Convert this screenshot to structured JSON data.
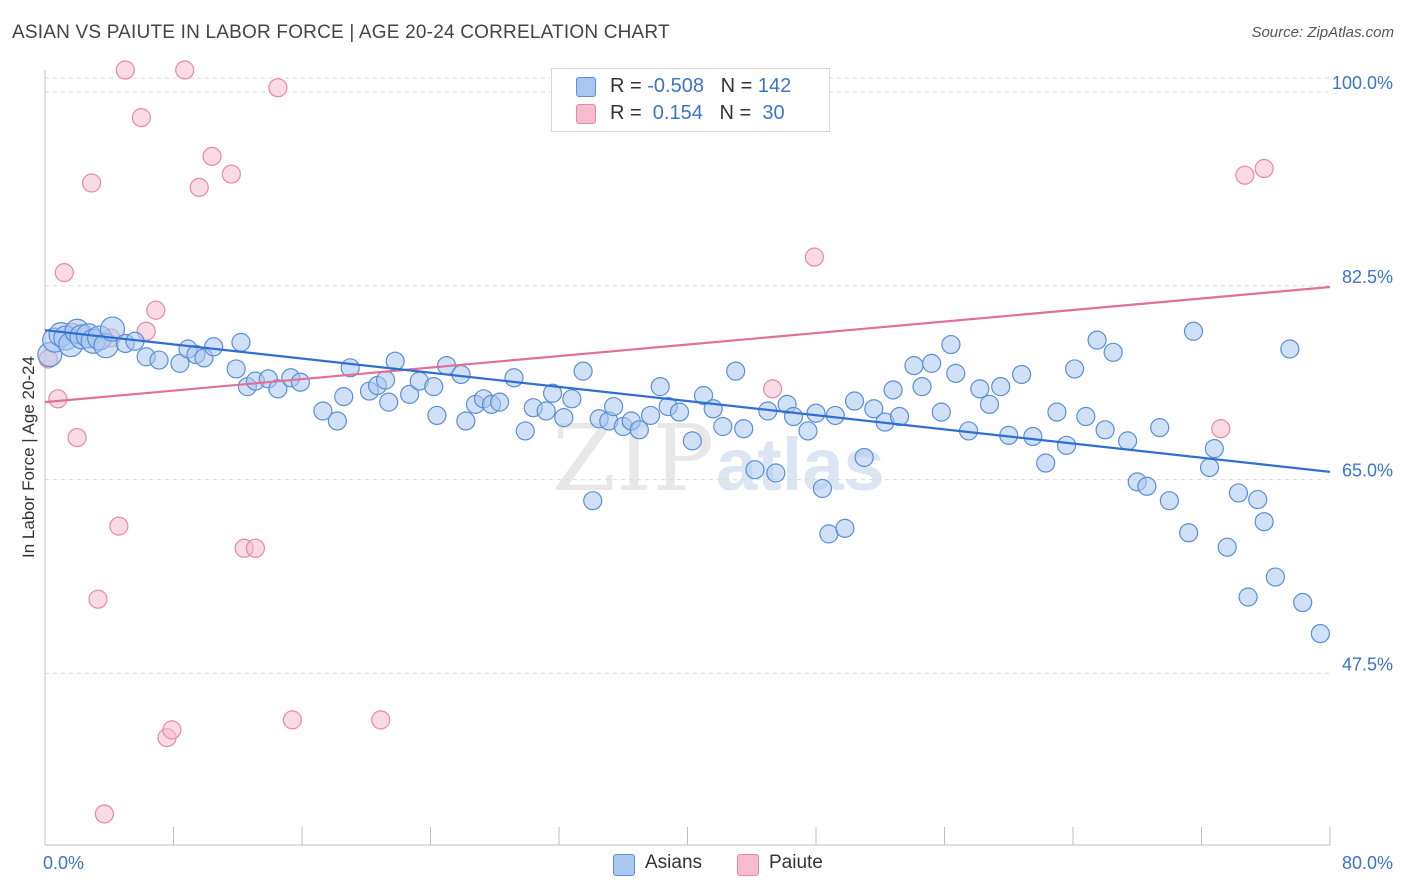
{
  "title": "ASIAN VS PAIUTE IN LABOR FORCE | AGE 20-24 CORRELATION CHART",
  "source": "Source: ZipAtlas.com",
  "legend_top": {
    "rows": [
      {
        "r_label": "R = ",
        "r_value": "-0.508",
        "n_label": "N = ",
        "n_value": "142"
      },
      {
        "r_label": "R = ",
        "r_value": " 0.154",
        "n_label": "N = ",
        "n_value": " 30"
      }
    ]
  },
  "legend_bottom": {
    "asians": "Asians",
    "paiute": "Paiute"
  },
  "colors": {
    "asian_fill": "#a9c6ef",
    "asian_stroke": "#5b8fd6",
    "asian_line": "#2f6fd1",
    "paiute_fill": "#f6bccd",
    "paiute_stroke": "#e889a6",
    "paiute_line": "#e0709a",
    "tick_text": "#3b74c9",
    "grid": "#d9d9d9"
  },
  "chart_data": {
    "type": "scatter",
    "title": "ASIAN VS PAIUTE IN LABOR FORCE | AGE 20-24 CORRELATION CHART",
    "xlabel": "",
    "ylabel": "In Labor Force | Age 20-24",
    "xlim": [
      0,
      80
    ],
    "ylim": [
      32,
      102
    ],
    "x_tick_labels": [
      "0.0%",
      "80.0%"
    ],
    "y_ticks": [
      47.5,
      65.0,
      82.5,
      100.0
    ],
    "y_tick_labels": [
      "47.5%",
      "65.0%",
      "82.5%",
      "100.0%"
    ],
    "series": [
      {
        "name": "Asians",
        "R": -0.508,
        "N": 142,
        "trend": {
          "x": [
            0,
            80
          ],
          "y": [
            78.5,
            65.7
          ]
        },
        "points": [
          [
            0.3,
            76.3
          ],
          [
            0.6,
            77.6
          ],
          [
            1.0,
            78.1
          ],
          [
            1.3,
            77.8
          ],
          [
            1.6,
            77.2
          ],
          [
            2.0,
            78.4
          ],
          [
            2.3,
            77.9
          ],
          [
            2.7,
            78.0
          ],
          [
            3.0,
            77.5
          ],
          [
            3.4,
            77.8
          ],
          [
            3.8,
            77.1
          ],
          [
            4.2,
            78.6
          ],
          [
            5.0,
            77.3
          ],
          [
            5.6,
            77.5
          ],
          [
            6.3,
            76.1
          ],
          [
            7.1,
            75.8
          ],
          [
            8.4,
            75.5
          ],
          [
            8.9,
            76.8
          ],
          [
            9.4,
            76.3
          ],
          [
            9.9,
            76.0
          ],
          [
            10.5,
            77.0
          ],
          [
            11.9,
            75.0
          ],
          [
            12.2,
            77.4
          ],
          [
            12.6,
            73.4
          ],
          [
            13.1,
            73.9
          ],
          [
            13.9,
            74.1
          ],
          [
            14.5,
            73.2
          ],
          [
            15.3,
            74.2
          ],
          [
            15.9,
            73.8
          ],
          [
            17.3,
            71.2
          ],
          [
            18.2,
            70.3
          ],
          [
            18.6,
            72.5
          ],
          [
            19.0,
            75.1
          ],
          [
            20.2,
            73.0
          ],
          [
            20.7,
            73.5
          ],
          [
            21.2,
            74.0
          ],
          [
            21.4,
            72.0
          ],
          [
            21.8,
            75.7
          ],
          [
            22.7,
            72.7
          ],
          [
            23.3,
            73.9
          ],
          [
            24.2,
            73.4
          ],
          [
            24.4,
            70.8
          ],
          [
            25.0,
            75.3
          ],
          [
            25.9,
            74.5
          ],
          [
            26.2,
            70.3
          ],
          [
            26.8,
            71.8
          ],
          [
            27.3,
            72.3
          ],
          [
            27.8,
            71.8
          ],
          [
            28.3,
            72.0
          ],
          [
            29.2,
            74.2
          ],
          [
            29.9,
            69.4
          ],
          [
            30.4,
            71.5
          ],
          [
            31.2,
            71.2
          ],
          [
            31.6,
            72.8
          ],
          [
            32.3,
            70.6
          ],
          [
            32.8,
            72.3
          ],
          [
            33.5,
            74.8
          ],
          [
            34.1,
            63.1
          ],
          [
            34.5,
            70.5
          ],
          [
            35.1,
            70.3
          ],
          [
            35.4,
            71.6
          ],
          [
            36.0,
            69.8
          ],
          [
            36.5,
            70.3
          ],
          [
            37.0,
            69.5
          ],
          [
            37.7,
            70.8
          ],
          [
            38.3,
            73.4
          ],
          [
            38.8,
            71.6
          ],
          [
            39.5,
            71.1
          ],
          [
            40.3,
            68.5
          ],
          [
            41.0,
            72.6
          ],
          [
            41.6,
            71.4
          ],
          [
            42.2,
            69.8
          ],
          [
            43.0,
            74.8
          ],
          [
            43.5,
            69.6
          ],
          [
            44.2,
            65.9
          ],
          [
            45.0,
            71.2
          ],
          [
            45.5,
            65.6
          ],
          [
            46.2,
            71.8
          ],
          [
            46.6,
            70.7
          ],
          [
            47.5,
            69.4
          ],
          [
            48.0,
            71.0
          ],
          [
            48.4,
            64.2
          ],
          [
            48.8,
            60.1
          ],
          [
            49.2,
            70.8
          ],
          [
            49.8,
            60.6
          ],
          [
            50.4,
            72.1
          ],
          [
            51.0,
            67.0
          ],
          [
            51.6,
            71.4
          ],
          [
            52.3,
            70.2
          ],
          [
            52.8,
            73.1
          ],
          [
            53.2,
            70.7
          ],
          [
            54.1,
            75.3
          ],
          [
            54.6,
            73.4
          ],
          [
            55.2,
            75.5
          ],
          [
            55.8,
            71.1
          ],
          [
            56.4,
            77.2
          ],
          [
            56.7,
            74.6
          ],
          [
            57.5,
            69.4
          ],
          [
            58.2,
            73.2
          ],
          [
            58.8,
            71.8
          ],
          [
            59.5,
            73.4
          ],
          [
            60.0,
            69.0
          ],
          [
            60.8,
            74.5
          ],
          [
            61.5,
            68.9
          ],
          [
            62.3,
            66.5
          ],
          [
            63.0,
            71.1
          ],
          [
            63.6,
            68.1
          ],
          [
            64.1,
            75.0
          ],
          [
            64.8,
            70.7
          ],
          [
            65.5,
            77.6
          ],
          [
            66.0,
            69.5
          ],
          [
            66.5,
            76.5
          ],
          [
            67.4,
            68.5
          ],
          [
            68.0,
            64.8
          ],
          [
            68.6,
            64.4
          ],
          [
            69.4,
            69.7
          ],
          [
            70.0,
            63.1
          ],
          [
            71.2,
            60.2
          ],
          [
            71.5,
            78.4
          ],
          [
            72.5,
            66.1
          ],
          [
            72.8,
            67.8
          ],
          [
            73.6,
            58.9
          ],
          [
            74.3,
            63.8
          ],
          [
            74.9,
            54.4
          ],
          [
            75.5,
            63.2
          ],
          [
            75.9,
            61.2
          ],
          [
            76.6,
            56.2
          ],
          [
            77.5,
            76.8
          ],
          [
            78.3,
            53.9
          ],
          [
            79.4,
            51.1
          ]
        ]
      },
      {
        "name": "Paiute",
        "R": 0.154,
        "N": 30,
        "trend": {
          "x": [
            0,
            80
          ],
          "y": [
            72.0,
            82.4
          ]
        },
        "points": [
          [
            0.2,
            75.9
          ],
          [
            0.8,
            72.3
          ],
          [
            1.2,
            83.7
          ],
          [
            1.7,
            78.3
          ],
          [
            2.0,
            68.8
          ],
          [
            2.9,
            91.8
          ],
          [
            3.3,
            54.2
          ],
          [
            4.1,
            77.8
          ],
          [
            4.6,
            60.8
          ],
          [
            5.0,
            102.0
          ],
          [
            6.0,
            97.7
          ],
          [
            6.3,
            78.4
          ],
          [
            6.9,
            80.3
          ],
          [
            7.6,
            41.7
          ],
          [
            7.9,
            42.4
          ],
          [
            8.7,
            102.0
          ],
          [
            9.6,
            91.4
          ],
          [
            10.4,
            94.2
          ],
          [
            11.6,
            92.6
          ],
          [
            12.4,
            58.8
          ],
          [
            13.1,
            58.8
          ],
          [
            14.5,
            100.4
          ],
          [
            15.4,
            43.3
          ],
          [
            20.9,
            43.3
          ],
          [
            45.3,
            73.2
          ],
          [
            47.9,
            85.1
          ],
          [
            73.2,
            69.6
          ],
          [
            74.7,
            92.5
          ],
          [
            75.9,
            93.1
          ],
          [
            3.7,
            34.8
          ]
        ]
      }
    ]
  }
}
